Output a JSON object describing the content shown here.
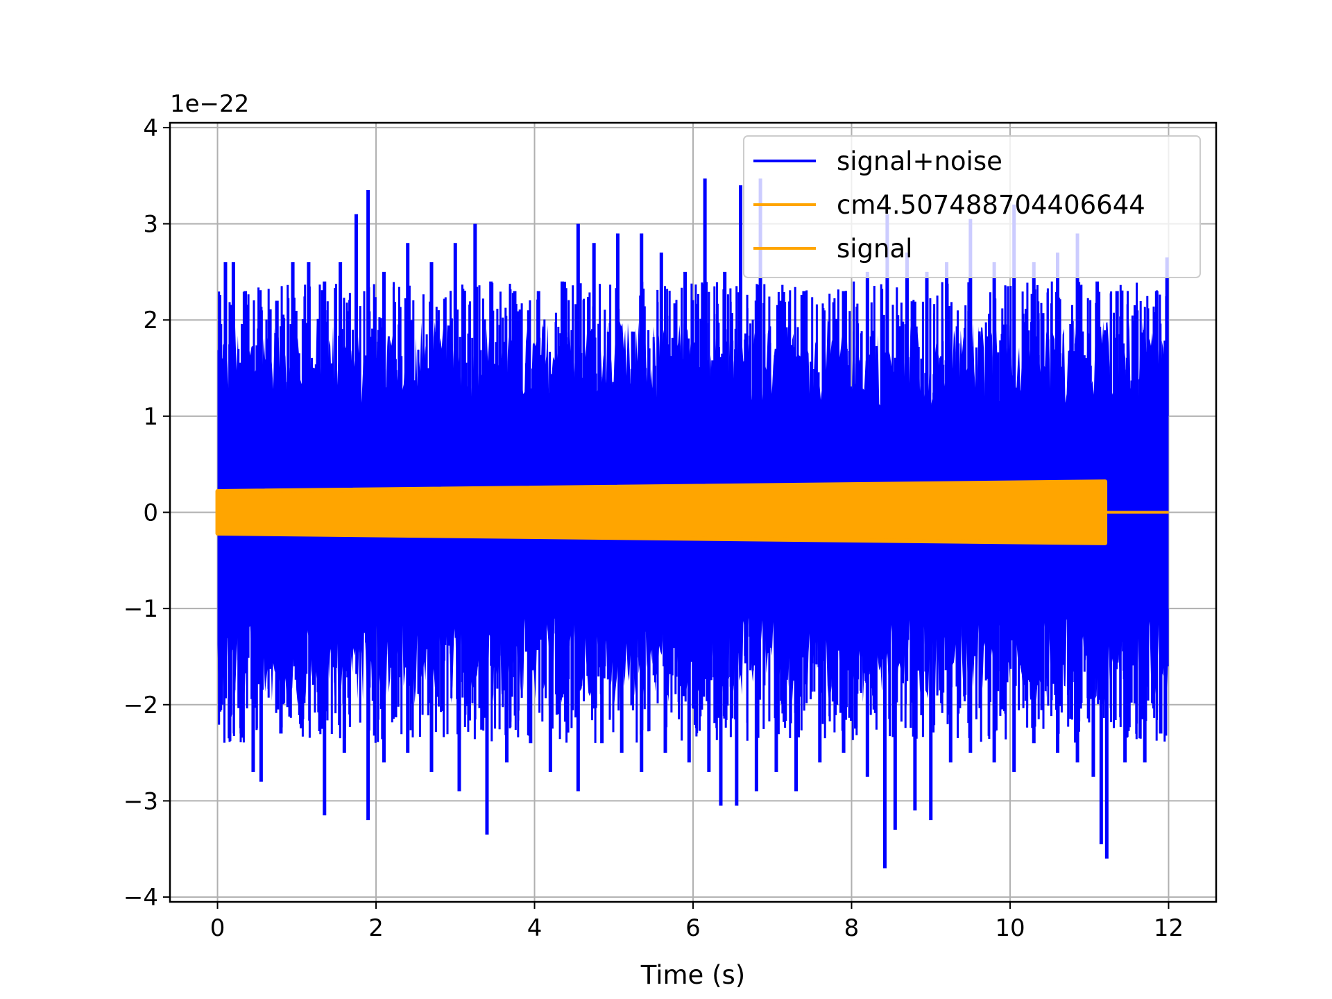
{
  "chart_data": {
    "type": "line",
    "title": "",
    "xlabel": "Time (s)",
    "ylabel": "",
    "y_offset_text": "1e−22",
    "y_scale": 1e-22,
    "xlim": [
      -0.6,
      12.6
    ],
    "ylim": [
      -4.05,
      4.05
    ],
    "x_ticks": [
      0,
      2,
      4,
      6,
      8,
      10,
      12
    ],
    "x_tick_labels": [
      "0",
      "2",
      "4",
      "6",
      "8",
      "10",
      "12"
    ],
    "y_ticks": [
      -4,
      -3,
      -2,
      -1,
      0,
      1,
      2,
      3,
      4
    ],
    "y_tick_labels": [
      "−4",
      "−3",
      "−2",
      "−1",
      "0",
      "1",
      "2",
      "3",
      "4"
    ],
    "grid": true,
    "legend_position": "top-right",
    "series": [
      {
        "name": "signal+noise",
        "color": "#0000ff",
        "x_range": [
          0,
          12
        ],
        "description_values": {
          "typical_amplitude": 1.6,
          "max": 3.5,
          "min": -3.7
        },
        "peaks": [
          {
            "x": 0.05,
            "y": 1.6
          },
          {
            "x": 0.1,
            "y": 2.6
          },
          {
            "x": 0.2,
            "y": 2.6
          },
          {
            "x": 0.35,
            "y": 2.3
          },
          {
            "x": 0.55,
            "y": 2.1
          },
          {
            "x": 0.75,
            "y": 2.2
          },
          {
            "x": 0.95,
            "y": 2.6
          },
          {
            "x": 1.15,
            "y": 2.6
          },
          {
            "x": 1.35,
            "y": 2.4
          },
          {
            "x": 1.55,
            "y": 2.6
          },
          {
            "x": 1.75,
            "y": 3.1
          },
          {
            "x": 1.9,
            "y": 3.35
          },
          {
            "x": 2.1,
            "y": 2.5
          },
          {
            "x": 2.4,
            "y": 2.8
          },
          {
            "x": 2.7,
            "y": 2.6
          },
          {
            "x": 3.0,
            "y": 2.8
          },
          {
            "x": 3.25,
            "y": 3.0
          },
          {
            "x": 3.45,
            "y": 2.4
          },
          {
            "x": 3.75,
            "y": 2.3
          },
          {
            "x": 4.05,
            "y": 2.3
          },
          {
            "x": 4.35,
            "y": 2.4
          },
          {
            "x": 4.55,
            "y": 3.0
          },
          {
            "x": 4.75,
            "y": 2.8
          },
          {
            "x": 5.05,
            "y": 2.9
          },
          {
            "x": 5.35,
            "y": 2.9
          },
          {
            "x": 5.6,
            "y": 2.7
          },
          {
            "x": 5.9,
            "y": 2.5
          },
          {
            "x": 6.15,
            "y": 3.47
          },
          {
            "x": 6.4,
            "y": 2.5
          },
          {
            "x": 6.6,
            "y": 3.4
          },
          {
            "x": 6.85,
            "y": 3.47
          },
          {
            "x": 7.1,
            "y": 2.2
          },
          {
            "x": 7.4,
            "y": 2.3
          },
          {
            "x": 7.65,
            "y": 2.1
          },
          {
            "x": 7.9,
            "y": 2.3
          },
          {
            "x": 8.2,
            "y": 2.5
          },
          {
            "x": 8.45,
            "y": 3.1
          },
          {
            "x": 8.7,
            "y": 2.7
          },
          {
            "x": 8.95,
            "y": 2.5
          },
          {
            "x": 9.2,
            "y": 2.6
          },
          {
            "x": 9.5,
            "y": 3.05
          },
          {
            "x": 9.8,
            "y": 2.6
          },
          {
            "x": 10.05,
            "y": 3.2
          },
          {
            "x": 10.3,
            "y": 2.6
          },
          {
            "x": 10.6,
            "y": 2.7
          },
          {
            "x": 10.85,
            "y": 2.9
          },
          {
            "x": 11.1,
            "y": 2.4
          },
          {
            "x": 11.35,
            "y": 2.3
          },
          {
            "x": 11.6,
            "y": 2.1
          },
          {
            "x": 11.85,
            "y": 2.3
          },
          {
            "x": 11.98,
            "y": 2.65
          }
        ],
        "troughs": [
          {
            "x": 0.05,
            "y": -2.0
          },
          {
            "x": 0.15,
            "y": -2.35
          },
          {
            "x": 0.3,
            "y": -2.3
          },
          {
            "x": 0.45,
            "y": -2.7
          },
          {
            "x": 0.55,
            "y": -2.8
          },
          {
            "x": 0.8,
            "y": -2.3
          },
          {
            "x": 1.05,
            "y": -2.2
          },
          {
            "x": 1.35,
            "y": -3.15
          },
          {
            "x": 1.6,
            "y": -2.5
          },
          {
            "x": 1.9,
            "y": -3.2
          },
          {
            "x": 2.1,
            "y": -2.6
          },
          {
            "x": 2.4,
            "y": -2.5
          },
          {
            "x": 2.7,
            "y": -2.7
          },
          {
            "x": 3.05,
            "y": -2.9
          },
          {
            "x": 3.4,
            "y": -3.35
          },
          {
            "x": 3.65,
            "y": -2.6
          },
          {
            "x": 3.95,
            "y": -2.4
          },
          {
            "x": 4.2,
            "y": -2.7
          },
          {
            "x": 4.55,
            "y": -2.9
          },
          {
            "x": 4.85,
            "y": -2.4
          },
          {
            "x": 5.1,
            "y": -2.5
          },
          {
            "x": 5.35,
            "y": -2.7
          },
          {
            "x": 5.65,
            "y": -2.5
          },
          {
            "x": 5.95,
            "y": -2.6
          },
          {
            "x": 6.2,
            "y": -2.7
          },
          {
            "x": 6.35,
            "y": -3.05
          },
          {
            "x": 6.55,
            "y": -3.05
          },
          {
            "x": 6.8,
            "y": -2.9
          },
          {
            "x": 7.05,
            "y": -2.7
          },
          {
            "x": 7.3,
            "y": -2.9
          },
          {
            "x": 7.6,
            "y": -2.6
          },
          {
            "x": 7.9,
            "y": -2.5
          },
          {
            "x": 8.2,
            "y": -2.75
          },
          {
            "x": 8.42,
            "y": -3.7
          },
          {
            "x": 8.55,
            "y": -3.3
          },
          {
            "x": 8.8,
            "y": -3.1
          },
          {
            "x": 9.0,
            "y": -3.2
          },
          {
            "x": 9.25,
            "y": -2.6
          },
          {
            "x": 9.5,
            "y": -2.5
          },
          {
            "x": 9.8,
            "y": -2.6
          },
          {
            "x": 10.05,
            "y": -2.7
          },
          {
            "x": 10.3,
            "y": -2.4
          },
          {
            "x": 10.6,
            "y": -2.5
          },
          {
            "x": 10.85,
            "y": -2.6
          },
          {
            "x": 11.05,
            "y": -2.75
          },
          {
            "x": 11.15,
            "y": -3.45
          },
          {
            "x": 11.22,
            "y": -3.6
          },
          {
            "x": 11.45,
            "y": -2.6
          },
          {
            "x": 11.7,
            "y": -2.6
          },
          {
            "x": 11.9,
            "y": -2.3
          },
          {
            "x": 11.98,
            "y": -1.6
          }
        ]
      },
      {
        "name": "cm4.507488704406644",
        "color": "#ffa500",
        "x_range": [
          0,
          11.2
        ],
        "amplitude_start": 0.22,
        "amplitude_end": 0.32,
        "after_end_value": 0.0
      },
      {
        "name": "signal",
        "color": "#ffa500",
        "x_range": [
          11.2,
          12
        ],
        "value": 0.0
      }
    ]
  }
}
